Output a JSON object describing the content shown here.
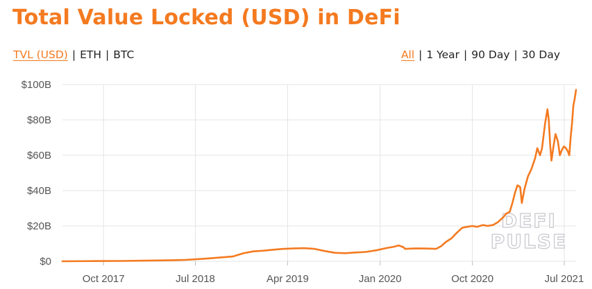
{
  "header": {
    "title": "Total Value Locked (USD) in DeFi"
  },
  "metric_tabs": [
    {
      "label": "TVL (USD)",
      "active": true
    },
    {
      "label": "ETH",
      "active": false
    },
    {
      "label": "BTC",
      "active": false
    }
  ],
  "range_tabs": [
    {
      "label": "All",
      "active": true
    },
    {
      "label": "1 Year",
      "active": false
    },
    {
      "label": "90 Day",
      "active": false
    },
    {
      "label": "30 Day",
      "active": false
    }
  ],
  "watermark": {
    "line1": "DEFI",
    "line2": "PULSE"
  },
  "colors": {
    "accent": "#f47a20",
    "grid": "#e4e4e4",
    "text": "#222222"
  },
  "chart_data": {
    "type": "line",
    "title": "",
    "xlabel": "",
    "ylabel": "",
    "ylim": [
      0,
      100
    ],
    "xlim": [
      "2017-06-01",
      "2021-08-05"
    ],
    "y_ticks": [
      {
        "value": 0,
        "label": "$0"
      },
      {
        "value": 20,
        "label": "$20B"
      },
      {
        "value": 40,
        "label": "$40B"
      },
      {
        "value": 60,
        "label": "$60B"
      },
      {
        "value": 80,
        "label": "$80B"
      },
      {
        "value": 100,
        "label": "$100B"
      }
    ],
    "x_ticks": [
      {
        "date": "2017-10-01",
        "label": "Oct 2017"
      },
      {
        "date": "2018-07-01",
        "label": "Jul 2018"
      },
      {
        "date": "2019-04-01",
        "label": "Apr 2019"
      },
      {
        "date": "2020-01-01",
        "label": "Jan 2020"
      },
      {
        "date": "2020-10-01",
        "label": "Oct 2020"
      },
      {
        "date": "2021-07-01",
        "label": "Jul 2021"
      }
    ],
    "grid": true,
    "legend": "none",
    "series": [
      {
        "color": "#f47a20",
        "points": [
          [
            "2017-06-01",
            0.0
          ],
          [
            "2017-09-01",
            0.1
          ],
          [
            "2017-12-01",
            0.2
          ],
          [
            "2018-02-01",
            0.35
          ],
          [
            "2018-04-01",
            0.5
          ],
          [
            "2018-06-01",
            0.8
          ],
          [
            "2018-08-01",
            1.5
          ],
          [
            "2018-09-15",
            2.2
          ],
          [
            "2018-10-20",
            2.7
          ],
          [
            "2018-11-20",
            4.5
          ],
          [
            "2018-12-20",
            5.6
          ],
          [
            "2019-01-20",
            6.0
          ],
          [
            "2019-02-20",
            6.6
          ],
          [
            "2019-03-20",
            7.0
          ],
          [
            "2019-04-20",
            7.3
          ],
          [
            "2019-05-20",
            7.4
          ],
          [
            "2019-06-20",
            7.0
          ],
          [
            "2019-07-20",
            5.8
          ],
          [
            "2019-08-20",
            4.8
          ],
          [
            "2019-09-20",
            4.6
          ],
          [
            "2019-10-20",
            5.0
          ],
          [
            "2019-11-20",
            5.3
          ],
          [
            "2019-12-20",
            6.2
          ],
          [
            "2020-01-20",
            7.5
          ],
          [
            "2020-02-10",
            8.2
          ],
          [
            "2020-02-25",
            9.0
          ],
          [
            "2020-03-10",
            8.0
          ],
          [
            "2020-03-15",
            7.0
          ],
          [
            "2020-04-15",
            7.3
          ],
          [
            "2020-05-15",
            7.2
          ],
          [
            "2020-06-15",
            7.0
          ],
          [
            "2020-06-30",
            8.5
          ],
          [
            "2020-07-15",
            11.0
          ],
          [
            "2020-07-31",
            13.0
          ],
          [
            "2020-08-15",
            16.0
          ],
          [
            "2020-09-01",
            19.0
          ],
          [
            "2020-09-15",
            19.5
          ],
          [
            "2020-10-01",
            20.0
          ],
          [
            "2020-10-15",
            19.5
          ],
          [
            "2020-11-01",
            20.5
          ],
          [
            "2020-11-15",
            20.0
          ],
          [
            "2020-12-01",
            20.5
          ],
          [
            "2020-12-15",
            22.0
          ],
          [
            "2021-01-01",
            25.0
          ],
          [
            "2021-01-10",
            27.0
          ],
          [
            "2021-01-20",
            28.0
          ],
          [
            "2021-01-28",
            33.0
          ],
          [
            "2021-02-05",
            39.0
          ],
          [
            "2021-02-12",
            43.0
          ],
          [
            "2021-02-20",
            42.0
          ],
          [
            "2021-02-25",
            33.0
          ],
          [
            "2021-03-05",
            41.0
          ],
          [
            "2021-03-15",
            48.0
          ],
          [
            "2021-03-25",
            52.0
          ],
          [
            "2021-04-05",
            58.0
          ],
          [
            "2021-04-12",
            64.0
          ],
          [
            "2021-04-20",
            60.0
          ],
          [
            "2021-04-26",
            64.0
          ],
          [
            "2021-05-05",
            78.0
          ],
          [
            "2021-05-12",
            86.0
          ],
          [
            "2021-05-16",
            80.0
          ],
          [
            "2021-05-20",
            66.0
          ],
          [
            "2021-05-24",
            57.0
          ],
          [
            "2021-05-30",
            65.0
          ],
          [
            "2021-06-05",
            72.0
          ],
          [
            "2021-06-12",
            68.0
          ],
          [
            "2021-06-18",
            60.0
          ],
          [
            "2021-06-24",
            63.0
          ],
          [
            "2021-06-30",
            65.0
          ],
          [
            "2021-07-06",
            64.0
          ],
          [
            "2021-07-12",
            62.0
          ],
          [
            "2021-07-16",
            60.0
          ],
          [
            "2021-07-20",
            70.0
          ],
          [
            "2021-07-24",
            78.0
          ],
          [
            "2021-07-28",
            88.0
          ],
          [
            "2021-08-01",
            92.0
          ],
          [
            "2021-08-05",
            97.0
          ]
        ]
      }
    ]
  }
}
